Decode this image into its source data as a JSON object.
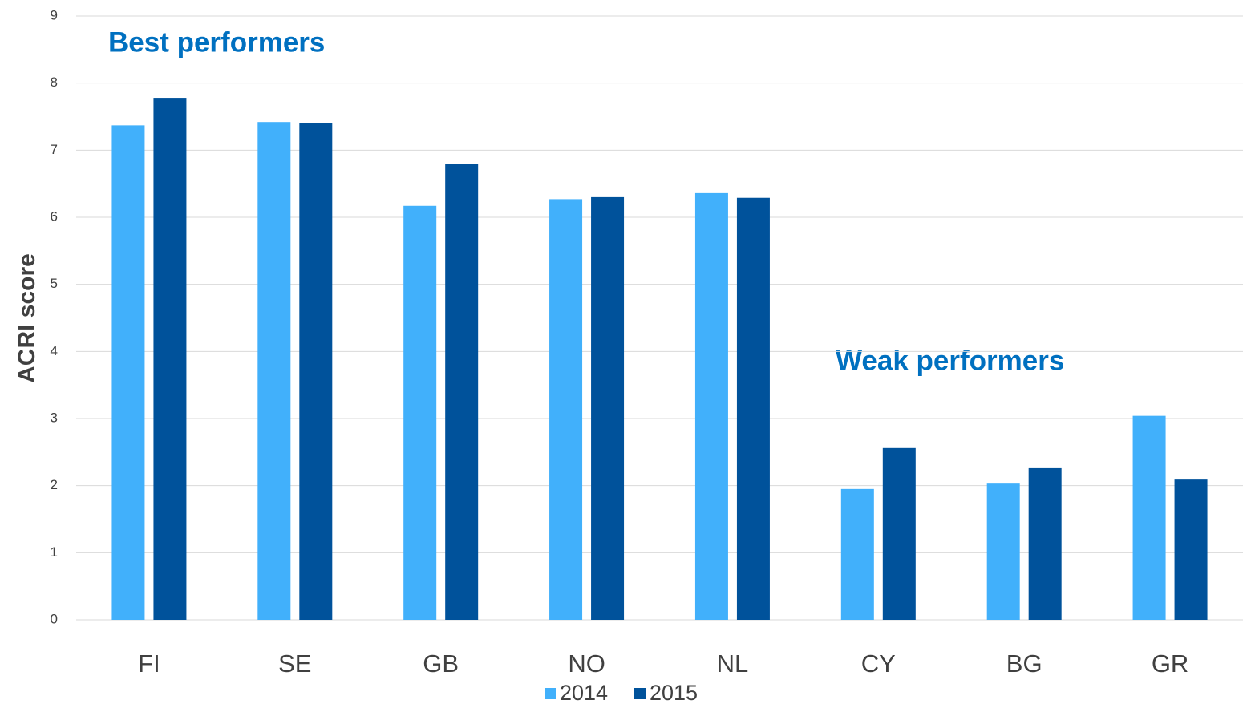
{
  "chart_data": {
    "type": "bar",
    "y_label": "ACRI score",
    "annotations": [
      "Best performers",
      "Weak performers"
    ],
    "categories": [
      "FI",
      "SE",
      "GB",
      "NO",
      "NL",
      "CY",
      "BG",
      "GR"
    ],
    "series": [
      {
        "name": "2014",
        "color": "#41b0fb",
        "values": [
          7.37,
          7.42,
          6.17,
          6.27,
          6.36,
          1.95,
          2.03,
          3.04
        ]
      },
      {
        "name": "2015",
        "color": "#00529b",
        "values": [
          7.78,
          7.41,
          6.79,
          6.3,
          6.29,
          2.56,
          2.26,
          2.09
        ]
      }
    ],
    "ylim": [
      0,
      9
    ],
    "yticks": [
      0,
      1,
      2,
      3,
      4,
      5,
      6,
      7,
      8,
      9
    ],
    "grid": true,
    "legend": "bottom"
  }
}
